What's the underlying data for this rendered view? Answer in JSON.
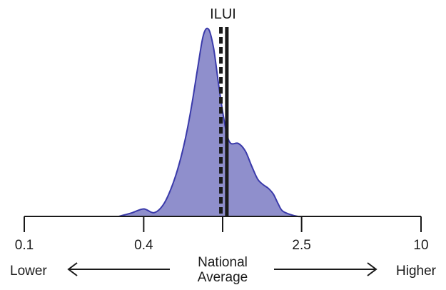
{
  "chart_data": {
    "type": "area",
    "title": "ILUI",
    "xscale": "log",
    "xlim": [
      0.1,
      10
    ],
    "ticks": [
      {
        "value": 0.1,
        "label": "0.1"
      },
      {
        "value": 0.4,
        "label": "0.4"
      },
      {
        "value": 1,
        "label": ""
      },
      {
        "value": 2.5,
        "label": "2.5"
      },
      {
        "value": 10,
        "label": "10"
      }
    ],
    "density": {
      "x": [
        0.3,
        0.35,
        0.4,
        0.45,
        0.5,
        0.55,
        0.6,
        0.65,
        0.7,
        0.75,
        0.8,
        0.85,
        0.9,
        0.95,
        1.0,
        1.05,
        1.1,
        1.2,
        1.3,
        1.4,
        1.5,
        1.6,
        1.7,
        1.8,
        1.9,
        2.0,
        2.2,
        2.4,
        2.5
      ],
      "y": [
        0.0,
        0.02,
        0.04,
        0.02,
        0.06,
        0.15,
        0.27,
        0.42,
        0.6,
        0.8,
        0.97,
        1.0,
        0.9,
        0.72,
        0.56,
        0.44,
        0.39,
        0.39,
        0.35,
        0.27,
        0.2,
        0.17,
        0.15,
        0.12,
        0.07,
        0.03,
        0.01,
        0.0,
        0.0
      ],
      "fill": "#8f8fcc",
      "stroke": "#3a3aaa"
    },
    "solid_line": 1.05,
    "dashed_line": 0.98,
    "line_color": "#1a1a1a"
  },
  "labels": {
    "lower": "Lower",
    "higher": "Higher",
    "center_line1": "National",
    "center_line2": "Average"
  }
}
